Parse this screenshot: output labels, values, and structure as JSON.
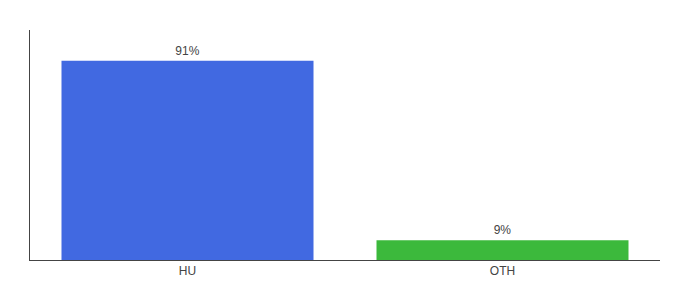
{
  "chart_data": {
    "type": "bar",
    "categories": [
      "HU",
      "OTH"
    ],
    "values": [
      91,
      9
    ],
    "value_labels": [
      "91%",
      "9%"
    ],
    "colors": [
      "#4169E1",
      "#3CB93C"
    ],
    "ylim": [
      0,
      105
    ],
    "tick_labels": "x",
    "grid": false
  }
}
